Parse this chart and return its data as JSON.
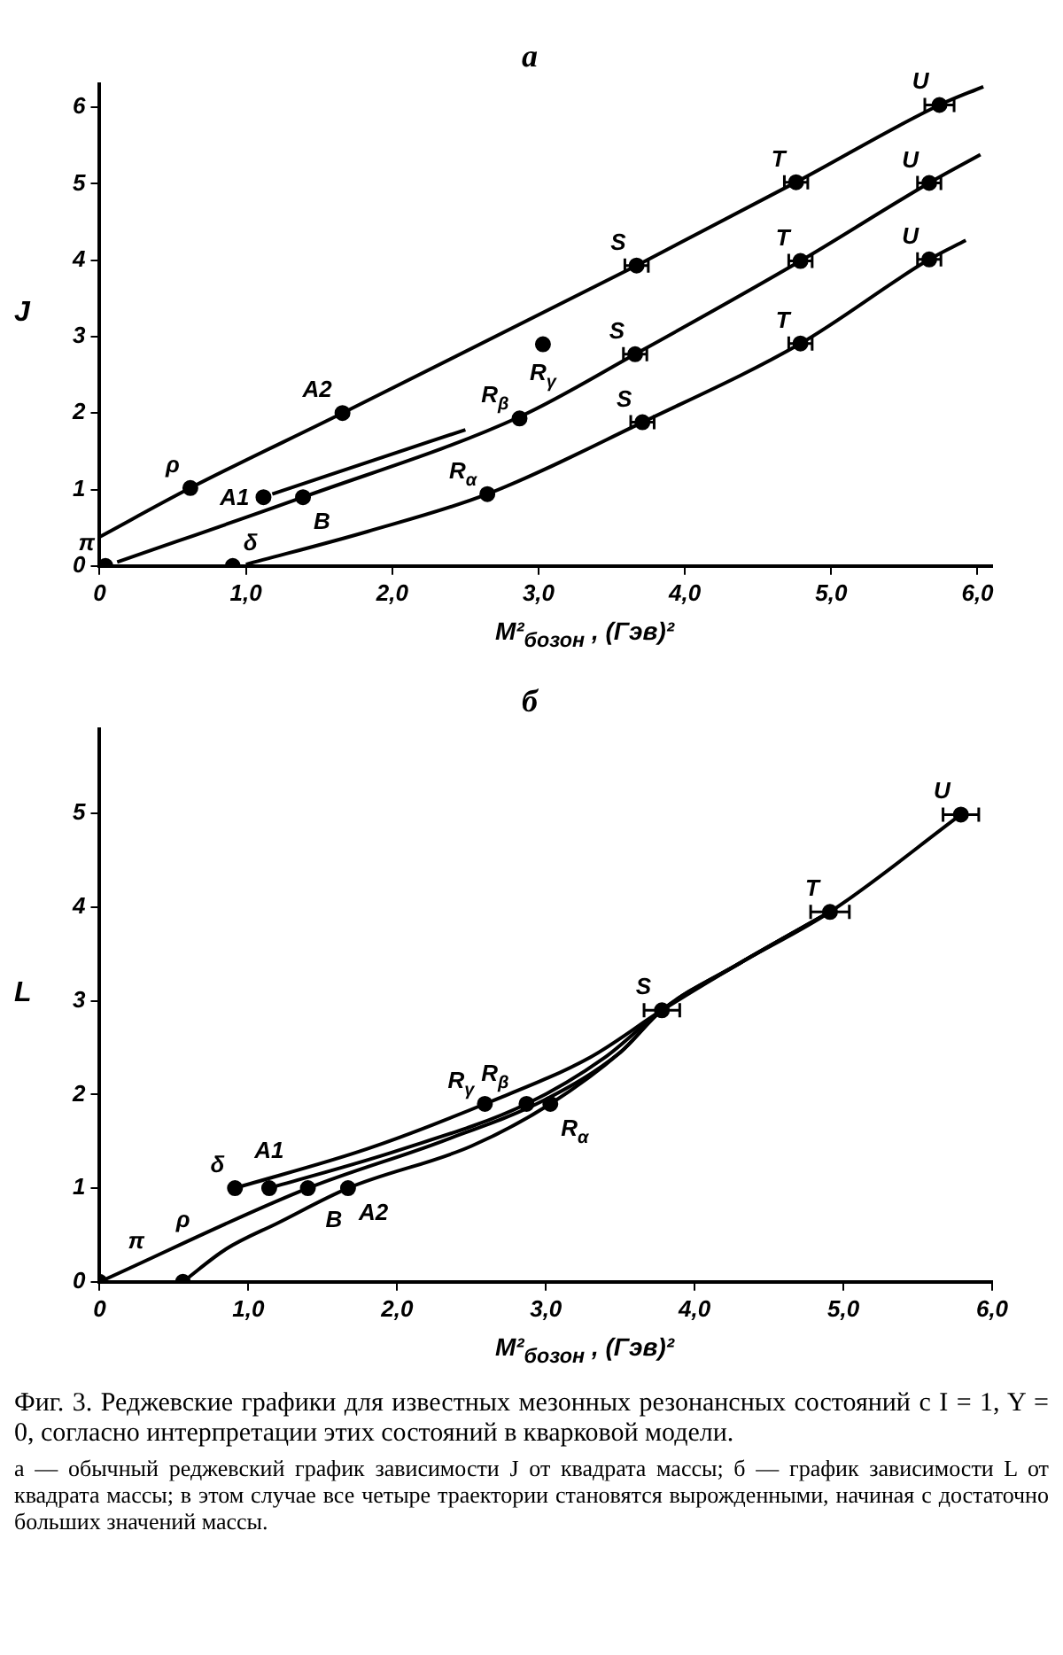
{
  "chart_data": [
    {
      "type": "scatter",
      "title": "а",
      "ylabel": "J",
      "xlabel": "M²$_{бозон}$ , (Гэв)²",
      "xlim": [
        0,
        6.1
      ],
      "ylim": [
        0,
        6.3
      ],
      "xticks": [
        0,
        {
          "value": 1,
          "label": "1,0"
        },
        {
          "value": 2,
          "label": "2,0"
        },
        {
          "value": 3,
          "label": "3,0"
        },
        {
          "value": 4,
          "label": "4,0"
        },
        {
          "value": 5,
          "label": "5,0"
        },
        {
          "value": 6,
          "label": "6,0"
        }
      ],
      "yticks": [
        0,
        1,
        2,
        3,
        4,
        5,
        6
      ],
      "grid": false,
      "line_style": "solid",
      "series": [
        {
          "marker": "circle",
          "color": "#000000",
          "x": [
            0.04,
            0.91,
            0.62,
            1.12,
            1.39,
            1.66,
            2.65,
            2.87,
            3.03,
            3.67,
            3.66,
            3.71,
            4.76,
            4.79,
            4.79,
            5.74,
            5.67,
            5.67
          ],
          "values": [
            0,
            0,
            1.02,
            0.9,
            0.9,
            2.0,
            0.94,
            1.93,
            2.9,
            3.93,
            2.77,
            1.88,
            5.02,
            3.99,
            2.91,
            6.03,
            5.01,
            4.01
          ],
          "xerrors": [
            null,
            null,
            null,
            null,
            null,
            null,
            null,
            null,
            null,
            0.08,
            0.08,
            0.08,
            0.08,
            0.08,
            0.08,
            0.1,
            0.08,
            0.08
          ]
        },
        {
          "type": "line",
          "color": "#000000",
          "x": [
            0,
            0.62,
            1.66,
            3.67,
            4.76,
            5.74,
            6.04
          ],
          "values": [
            0.38,
            1.02,
            2.0,
            3.93,
            5.02,
            6.03,
            6.27
          ]
        },
        {
          "type": "line",
          "color": "#000000",
          "x": [
            0.12,
            1.39,
            2.87,
            3.66,
            4.79,
            5.67,
            6.02
          ],
          "values": [
            0.05,
            0.9,
            1.95,
            2.77,
            3.99,
            5.01,
            5.38
          ]
        },
        {
          "type": "line",
          "color": "#000000",
          "x": [
            1.18,
            2.26,
            2.5
          ],
          "values": [
            0.94,
            1.63,
            1.78
          ]
        },
        {
          "type": "line",
          "color": "#000000",
          "x": [
            1.0,
            1.83,
            2.65,
            3.71,
            4.79,
            5.67,
            5.92
          ],
          "values": [
            0.02,
            0.45,
            0.94,
            1.88,
            2.91,
            4.01,
            4.26
          ]
        }
      ],
      "annotations": [
        {
          "text": "π",
          "x": 0.04,
          "y": 0
        },
        {
          "text": "δ",
          "x": 0.91,
          "y": 0
        },
        {
          "text": "ρ",
          "x": 0.62,
          "y": 1.02
        },
        {
          "text": "A1",
          "x": 1.12,
          "y": 0.9
        },
        {
          "text": "B",
          "x": 1.39,
          "y": 0.9
        },
        {
          "text": "A2",
          "x": 1.66,
          "y": 2.0
        },
        {
          "text": "R$_{α}$",
          "x": 2.65,
          "y": 0.94
        },
        {
          "text": "R$_{β}$",
          "x": 2.87,
          "y": 1.93
        },
        {
          "text": "R$_{γ}$",
          "x": 3.03,
          "y": 2.9
        },
        {
          "text": "S",
          "x": 3.67,
          "y": 3.93
        },
        {
          "text": "S",
          "x": 3.66,
          "y": 2.77
        },
        {
          "text": "S",
          "x": 3.71,
          "y": 1.88
        },
        {
          "text": "T",
          "x": 4.76,
          "y": 5.02
        },
        {
          "text": "T",
          "x": 4.79,
          "y": 3.99
        },
        {
          "text": "T",
          "x": 4.79,
          "y": 2.91
        },
        {
          "text": "U",
          "x": 5.74,
          "y": 6.03
        },
        {
          "text": "U",
          "x": 5.67,
          "y": 5.01
        },
        {
          "text": "U",
          "x": 5.67,
          "y": 4.01
        }
      ]
    },
    {
      "type": "scatter",
      "title": "б",
      "ylabel": "L",
      "xlabel": "M²$_{бозон}$ , (Гэв)²",
      "xlim": [
        0,
        6
      ],
      "ylim": [
        0,
        5.9
      ],
      "xticks": [
        0,
        {
          "value": 1,
          "label": "1,0"
        },
        {
          "value": 2,
          "label": "2,0"
        },
        {
          "value": 3,
          "label": "3,0"
        },
        {
          "value": 4,
          "label": "4,0"
        },
        {
          "value": 5,
          "label": "5,0"
        },
        {
          "value": 6,
          "label": "6,0"
        }
      ],
      "yticks": [
        0,
        1,
        2,
        3,
        4,
        5
      ],
      "grid": false,
      "line_style": "solid",
      "series": [
        {
          "marker": "circle",
          "color": "#000000",
          "x": [
            0,
            0.56,
            0.91,
            1.14,
            1.4,
            1.67,
            2.59,
            2.87,
            3.03,
            3.78,
            4.91,
            5.79
          ],
          "values": [
            0,
            0,
            1,
            1,
            1,
            1,
            1.9,
            1.9,
            1.9,
            2.9,
            3.95,
            4.99
          ],
          "xerrors": [
            null,
            null,
            null,
            null,
            null,
            null,
            null,
            null,
            null,
            0.12,
            0.13,
            0.12
          ]
        },
        {
          "type": "line",
          "color": "#000000",
          "x": [
            0.91,
            1.8,
            2.59,
            3.3,
            3.78,
            4.3,
            4.91,
            5.79
          ],
          "values": [
            1,
            1.42,
            1.9,
            2.4,
            2.9,
            3.4,
            3.95,
            4.99
          ]
        },
        {
          "type": "line",
          "color": "#000000",
          "x": [
            1.14,
            2.0,
            2.87,
            3.4,
            3.78,
            4.3,
            4.91
          ],
          "values": [
            1,
            1.4,
            1.9,
            2.4,
            2.9,
            3.4,
            3.95
          ]
        },
        {
          "type": "line",
          "color": "#000000",
          "x": [
            0,
            1.4,
            2.3,
            3.0,
            3.5,
            3.78,
            4.3,
            4.91
          ],
          "values": [
            0,
            1,
            1.5,
            1.95,
            2.45,
            2.9,
            3.4,
            3.95
          ]
        },
        {
          "type": "line",
          "color": "#000000",
          "x": [
            0.56,
            0.85,
            1.2,
            1.67,
            2.5,
            3.03,
            3.5,
            3.78,
            4.3,
            4.91
          ],
          "values": [
            0,
            0.35,
            0.63,
            1,
            1.45,
            1.9,
            2.45,
            2.9,
            3.4,
            3.95
          ]
        }
      ],
      "annotations": [
        {
          "text": "π",
          "x": 0,
          "y": 0
        },
        {
          "text": "ρ",
          "x": 0.56,
          "y": 0
        },
        {
          "text": "δ",
          "x": 0.91,
          "y": 1
        },
        {
          "text": "A1",
          "x": 1.14,
          "y": 1
        },
        {
          "text": "B",
          "x": 1.4,
          "y": 1
        },
        {
          "text": "A2",
          "x": 1.67,
          "y": 1
        },
        {
          "text": "R$_{γ}$",
          "x": 2.59,
          "y": 1.9
        },
        {
          "text": "R$_{β}$",
          "x": 2.87,
          "y": 1.9
        },
        {
          "text": "R$_{α}$",
          "x": 3.03,
          "y": 1.9
        },
        {
          "text": "S",
          "x": 3.78,
          "y": 2.9
        },
        {
          "text": "T",
          "x": 4.91,
          "y": 3.95
        },
        {
          "text": "U",
          "x": 5.79,
          "y": 4.99
        },
        "Фиг. 3. Реджевские графики для известных мезонных резонансных состояний с I = 1, Y = 0, согласно интерпретации этих состояний в кварковой модели.",
        "а — обычный реджевский график зависимости J от квадрата массы; б — график зависимости L от квадрата массы; в этом случае все четыре траектории становятся вырожденными, начиная с достаточно больших значений массы."
      ]
    }
  ]
}
